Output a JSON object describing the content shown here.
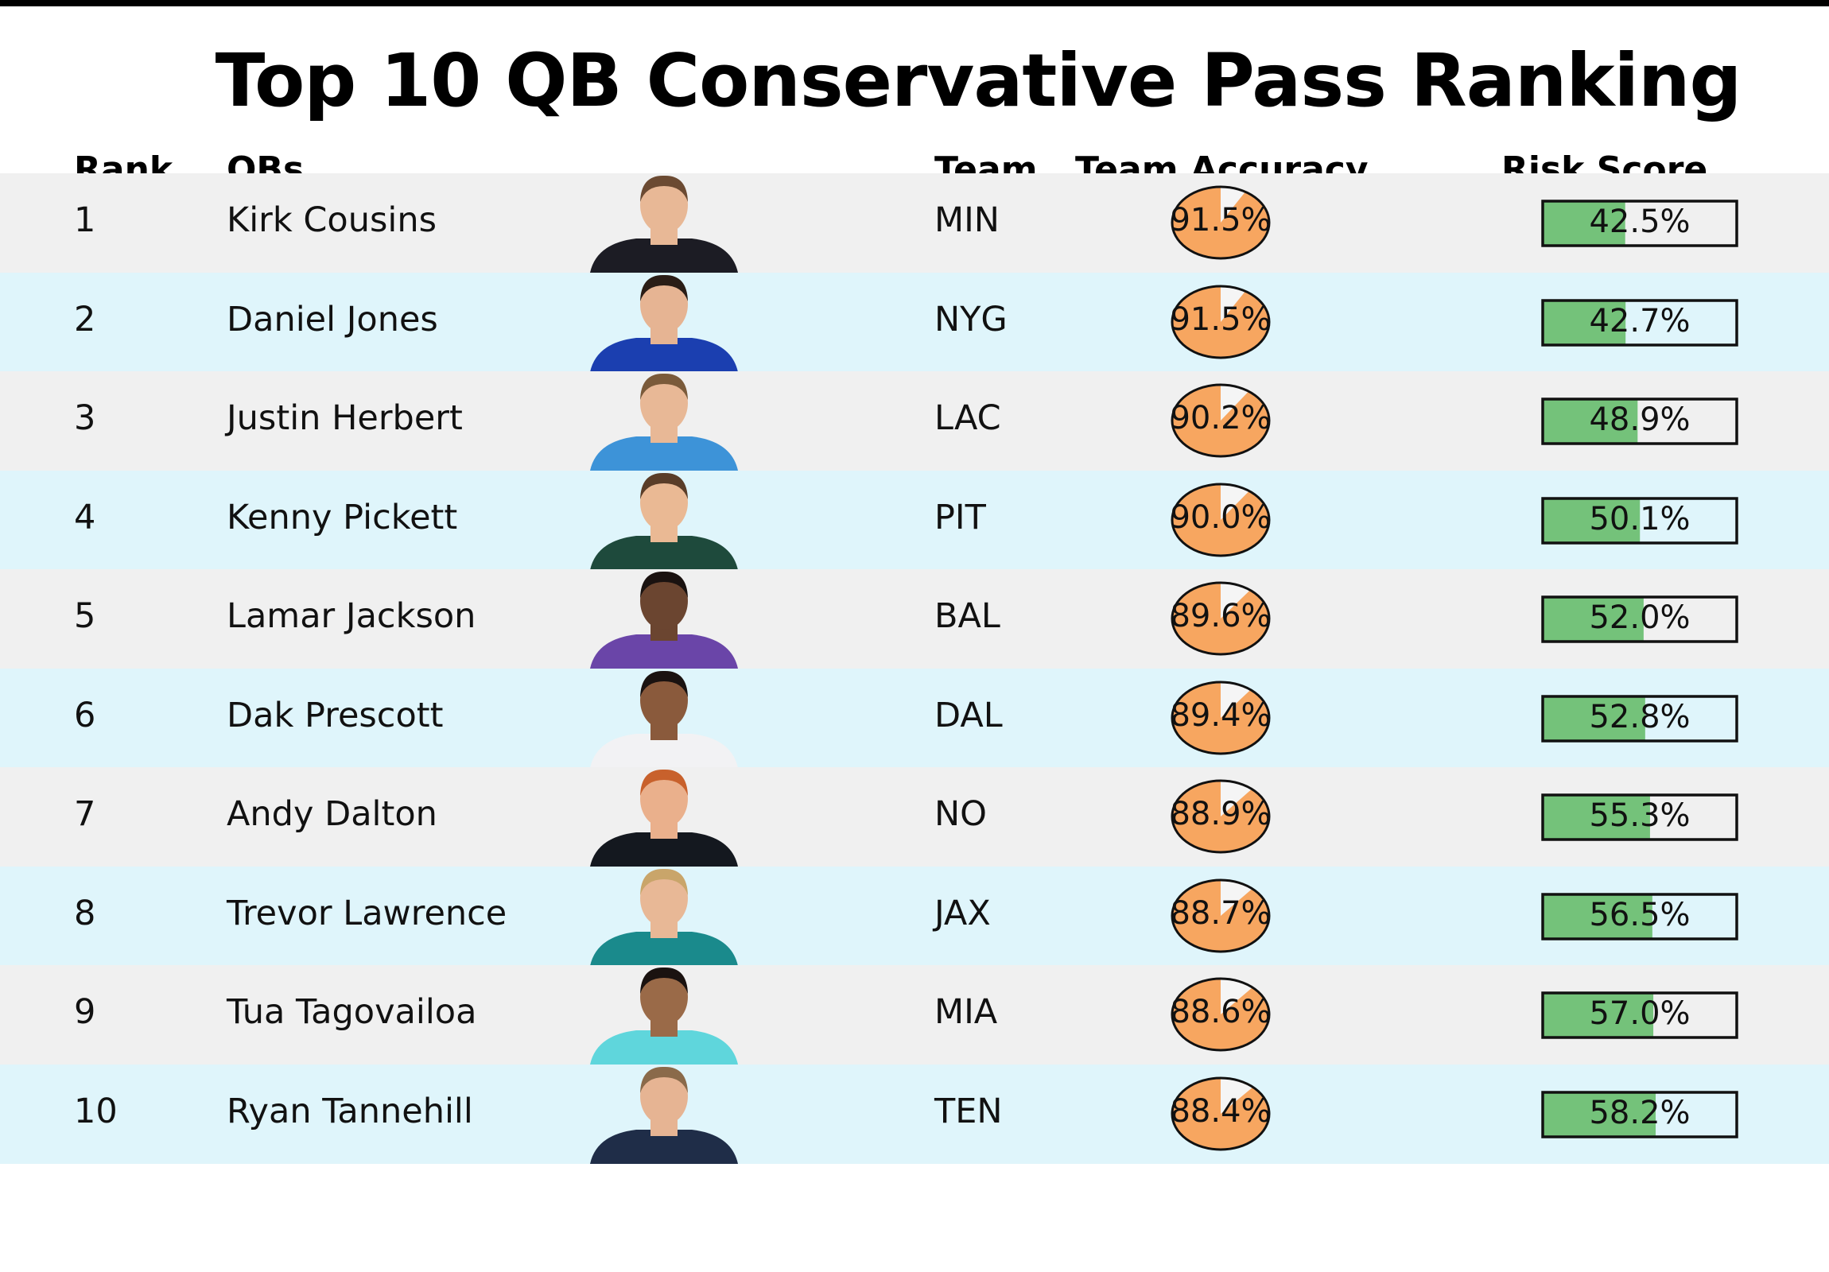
{
  "title": "Top 10 QB Conservative Pass Ranking",
  "headers": {
    "rank": "Rank",
    "qbs": "QBs",
    "team": "Team",
    "accuracy": "Team Accuracy",
    "risk": "Risk Score"
  },
  "colors": {
    "row_odd": "#f0f0f0",
    "row_even": "#dff5fb",
    "pie_fill": "#f7a660",
    "pie_remainder": "#f5f5f5",
    "bar_fill": "#74c27a",
    "bar_border": "#111111"
  },
  "chart_data": {
    "type": "table",
    "columns": [
      "Rank",
      "QBs",
      "Team",
      "Team Accuracy",
      "Risk Score"
    ],
    "rows": [
      {
        "rank": "1",
        "qb": "Kirk Cousins",
        "team": "MIN",
        "accuracy": 91.5,
        "accuracy_label": "91.5%",
        "risk": 42.5,
        "risk_label": "42.5%",
        "jersey": "#1c1c24",
        "skin": "#e8b896",
        "hair": "#6b4a32"
      },
      {
        "rank": "2",
        "qb": "Daniel Jones",
        "team": "NYG",
        "accuracy": 91.5,
        "accuracy_label": "91.5%",
        "risk": 42.7,
        "risk_label": "42.7%",
        "jersey": "#1b3fb0",
        "skin": "#e6b493",
        "hair": "#2a1d16"
      },
      {
        "rank": "3",
        "qb": "Justin Herbert",
        "team": "LAC",
        "accuracy": 90.2,
        "accuracy_label": "90.2%",
        "risk": 48.9,
        "risk_label": "48.9%",
        "jersey": "#3d93d8",
        "skin": "#e8b896",
        "hair": "#7a5a3a"
      },
      {
        "rank": "4",
        "qb": "Kenny Pickett",
        "team": "PIT",
        "accuracy": 90.0,
        "accuracy_label": "90.0%",
        "risk": 50.1,
        "risk_label": "50.1%",
        "jersey": "#1e4a3c",
        "skin": "#eab994",
        "hair": "#5a3d28"
      },
      {
        "rank": "5",
        "qb": "Lamar Jackson",
        "team": "BAL",
        "accuracy": 89.6,
        "accuracy_label": "89.6%",
        "risk": 52.0,
        "risk_label": "52.0%",
        "jersey": "#6a45a8",
        "skin": "#6b4530",
        "hair": "#1a1210"
      },
      {
        "rank": "6",
        "qb": "Dak Prescott",
        "team": "DAL",
        "accuracy": 89.4,
        "accuracy_label": "89.4%",
        "risk": 52.8,
        "risk_label": "52.8%",
        "jersey": "#f2f2f4",
        "skin": "#8a5a3c",
        "hair": "#1a1210"
      },
      {
        "rank": "7",
        "qb": "Andy Dalton",
        "team": "NO",
        "accuracy": 88.9,
        "accuracy_label": "88.9%",
        "risk": 55.3,
        "risk_label": "55.3%",
        "jersey": "#14181f",
        "skin": "#eab08c",
        "hair": "#c8612c"
      },
      {
        "rank": "8",
        "qb": "Trevor Lawrence",
        "team": "JAX",
        "accuracy": 88.7,
        "accuracy_label": "88.7%",
        "risk": 56.5,
        "risk_label": "56.5%",
        "jersey": "#1a8a8c",
        "skin": "#e8b896",
        "hair": "#c9a56a"
      },
      {
        "rank": "9",
        "qb": "Tua Tagovailoa",
        "team": "MIA",
        "accuracy": 88.6,
        "accuracy_label": "88.6%",
        "risk": 57.0,
        "risk_label": "57.0%",
        "jersey": "#5fd6dc",
        "skin": "#9a6a48",
        "hair": "#1a1210"
      },
      {
        "rank": "10",
        "qb": "Ryan Tannehill",
        "team": "TEN",
        "accuracy": 88.4,
        "accuracy_label": "88.4%",
        "risk": 58.2,
        "risk_label": "58.2%",
        "jersey": "#1f2d48",
        "skin": "#e6b493",
        "hair": "#8a6a4a"
      }
    ]
  }
}
